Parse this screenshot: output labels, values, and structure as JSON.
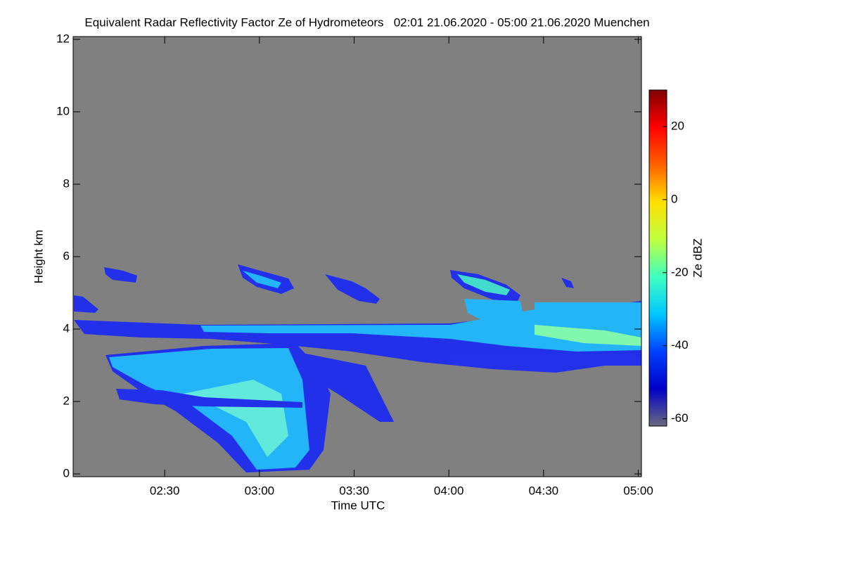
{
  "chart_data": {
    "type": "heatmap",
    "title": "Equivalent Radar Reflectivity Factor Ze of Hydrometeors   02:01 21.06.2020 - 05:00 21.06.2020 Muenchen",
    "x_label": "Time UTC",
    "y_label": "Height km",
    "xlim": [
      121,
      301
    ],
    "xticks": [
      {
        "value": 150,
        "label": "02:30"
      },
      {
        "value": 180,
        "label": "03:00"
      },
      {
        "value": 210,
        "label": "03:30"
      },
      {
        "value": 240,
        "label": "04:00"
      },
      {
        "value": 270,
        "label": "04:30"
      },
      {
        "value": 300,
        "label": "05:00"
      }
    ],
    "ylim": [
      0,
      12
    ],
    "yticks": [
      0,
      2,
      4,
      6,
      8,
      10,
      12
    ],
    "colorbar": {
      "label": "Ze dBZ",
      "lim": [
        -62,
        30
      ],
      "ticks": [
        -60,
        -40,
        -20,
        0,
        20
      ],
      "colors": [
        "#6a6a80",
        "#0000c8",
        "#0040ff",
        "#00c8ff",
        "#40ffc0",
        "#c0ff40",
        "#ffe000",
        "#ff6000",
        "#ff0000",
        "#800000"
      ]
    },
    "background": "#808080"
  }
}
